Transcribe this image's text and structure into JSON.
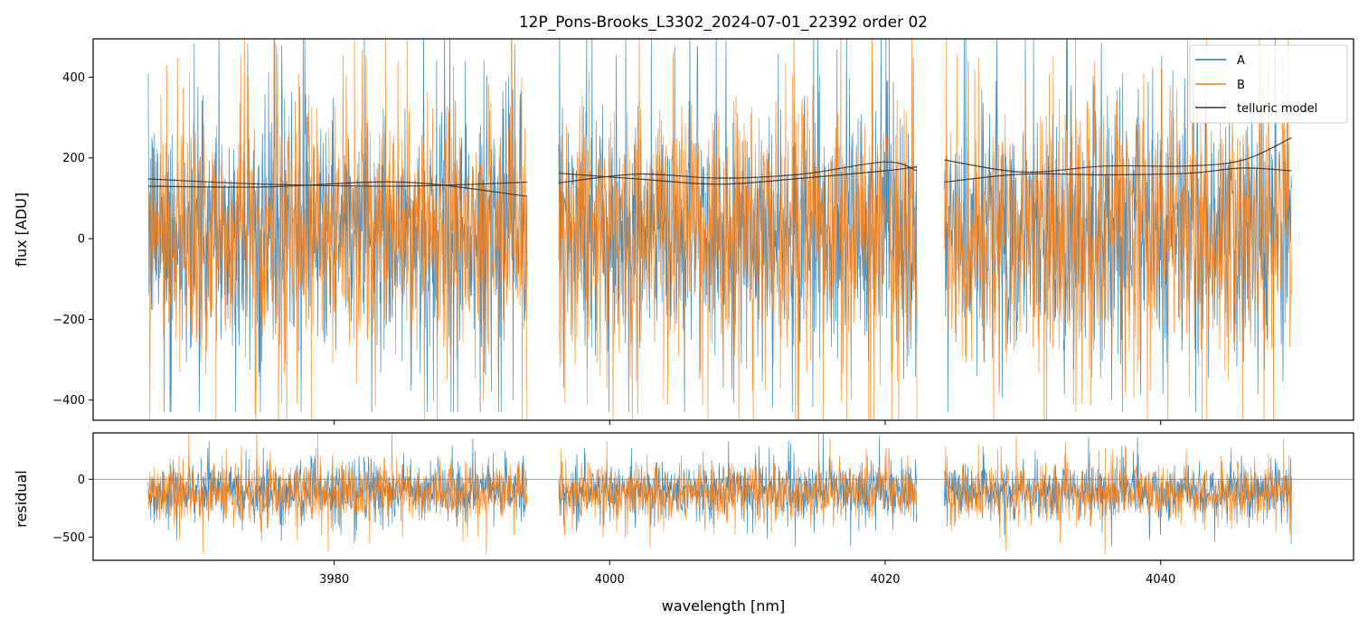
{
  "chart_data": [
    {
      "type": "line",
      "title": "12P_Pons-Brooks_L3302_2024-07-01_22392  order 02",
      "xlabel": "",
      "ylabel": "flux [ADU]",
      "xlim": [
        3962.5,
        4054
      ],
      "ylim": [
        -450,
        495
      ],
      "yticks": [
        -400,
        -200,
        0,
        200,
        400
      ],
      "grid": false,
      "legend_position": "top-right",
      "segments": [
        [
          3966.5,
          3994
        ],
        [
          3996.3,
          4022.3
        ],
        [
          4024.3,
          4049.5
        ]
      ],
      "series": [
        {
          "name": "A",
          "color": "#1f77b4",
          "kind": "noise",
          "center": 20,
          "spread": 140,
          "spike": 480,
          "min": -430,
          "max": 520
        },
        {
          "name": "B",
          "color": "#ff7f0e",
          "kind": "noise",
          "center": 15,
          "spread": 150,
          "spike": 500,
          "min": -460,
          "max": 520
        },
        {
          "name": "telluric model",
          "color": "#333333",
          "kind": "curve",
          "curves": [
            {
              "x": [
                3966.5,
                3975,
                3985,
                3994
              ],
              "y": [
                148,
                135,
                130,
                140
              ]
            },
            {
              "x": [
                3966.5,
                3975,
                3985,
                3994
              ],
              "y": [
                130,
                128,
                140,
                105
              ]
            },
            {
              "x": [
                3996.3,
                4002,
                4008,
                4014,
                4020,
                4022.3
              ],
              "y": [
                138,
                160,
                150,
                160,
                190,
                168
              ]
            },
            {
              "x": [
                3996.3,
                4002,
                4008,
                4014,
                4020,
                4022.3
              ],
              "y": [
                162,
                148,
                135,
                150,
                168,
                178
              ]
            },
            {
              "x": [
                4024.3,
                4030,
                4036,
                4042,
                4046,
                4049.5
              ],
              "y": [
                195,
                165,
                180,
                180,
                195,
                250
              ]
            },
            {
              "x": [
                4024.3,
                4030,
                4036,
                4042,
                4046,
                4049.5
              ],
              "y": [
                140,
                160,
                158,
                162,
                175,
                168
              ]
            }
          ]
        }
      ]
    },
    {
      "type": "line",
      "title": "",
      "xlabel": "wavelength [nm]",
      "ylabel": "residual",
      "xlim": [
        3962.5,
        4054
      ],
      "ylim": [
        -700,
        400
      ],
      "xticks": [
        3980,
        4000,
        4020,
        4040
      ],
      "yticks": [
        -500,
        0
      ],
      "hline": 0,
      "grid": false,
      "series": [
        {
          "name": "A",
          "color": "#1f77b4",
          "center": -100,
          "spread": 110,
          "spike": 330,
          "min": -580,
          "max": 420
        },
        {
          "name": "B",
          "color": "#ff7f0e",
          "center": -110,
          "spread": 120,
          "spike": 340,
          "min": -660,
          "max": 420
        }
      ]
    }
  ],
  "colors": {
    "A": "#1f77b4",
    "B": "#ff7f0e",
    "model": "#333333",
    "zero_line": "#808080"
  }
}
